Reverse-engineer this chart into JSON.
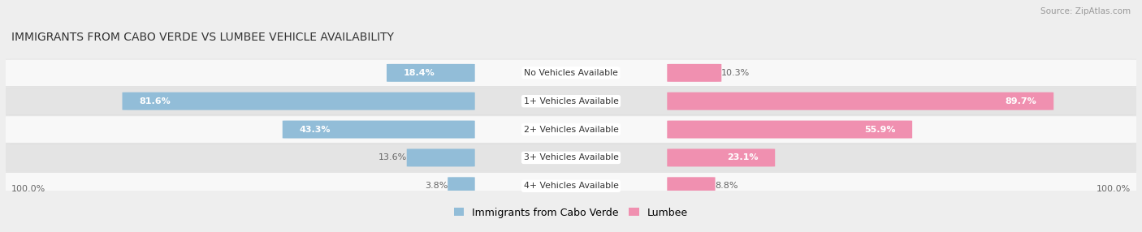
{
  "title": "IMMIGRANTS FROM CABO VERDE VS LUMBEE VEHICLE AVAILABILITY",
  "source": "Source: ZipAtlas.com",
  "categories": [
    "No Vehicles Available",
    "1+ Vehicles Available",
    "2+ Vehicles Available",
    "3+ Vehicles Available",
    "4+ Vehicles Available"
  ],
  "cabo_verde_values": [
    18.4,
    81.6,
    43.3,
    13.6,
    3.8
  ],
  "lumbee_values": [
    10.3,
    89.7,
    55.9,
    23.1,
    8.8
  ],
  "cabo_verde_color": "#92bdd8",
  "lumbee_color": "#f090b0",
  "bg_color": "#eeeeee",
  "row_bg_even": "#f8f8f8",
  "row_bg_odd": "#e4e4e4",
  "title_color": "#333333",
  "source_color": "#999999",
  "label_color_inside": "#ffffff",
  "label_color_outside": "#666666",
  "legend_cabo_label": "Immigrants from Cabo Verde",
  "legend_lumbee_label": "Lumbee",
  "bottom_label": "100.0%"
}
